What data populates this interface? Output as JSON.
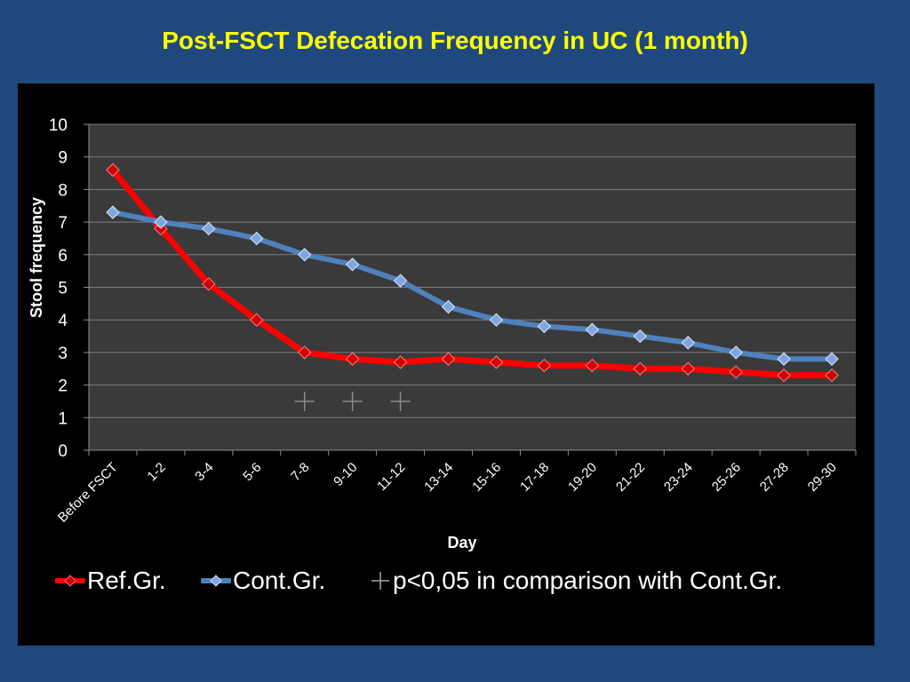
{
  "title": "Post-FSCT Defecation Frequency in UC (1 month)",
  "chart_data": {
    "type": "line",
    "title": "Post-FSCT Defecation Frequency in UC (1 month)",
    "xlabel": "Day",
    "ylabel": "Stool  frequency",
    "ylim": [
      0,
      10
    ],
    "yticks": [
      "0",
      "1",
      "2",
      "3",
      "4",
      "5",
      "6",
      "7",
      "8",
      "9",
      "10"
    ],
    "categories": [
      "Before FSCT",
      "1-2",
      "3-4",
      "5-6",
      "7-8",
      "9-10",
      "11-12",
      "13-14",
      "15-16",
      "17-18",
      "19-20",
      "21-22",
      "23-24",
      "25-26",
      "27-28",
      "29-30"
    ],
    "series": [
      {
        "name": "Ref.Gr.",
        "color": "#ff0000",
        "marker_color": "#cc0000",
        "values": [
          8.6,
          6.8,
          5.1,
          4.0,
          3.0,
          2.8,
          2.7,
          2.8,
          2.7,
          2.6,
          2.6,
          2.5,
          2.5,
          2.4,
          2.3,
          2.3
        ]
      },
      {
        "name": "Cont.Gr.",
        "color": "#4f81bd",
        "marker_color": "#7ea6e0",
        "values": [
          7.3,
          7.0,
          6.8,
          6.5,
          6.0,
          5.7,
          5.2,
          4.4,
          4.0,
          3.8,
          3.7,
          3.5,
          3.3,
          3.0,
          2.8,
          2.8
        ]
      }
    ],
    "significance_marks": {
      "symbol": "+",
      "categories": [
        "7-8",
        "9-10",
        "11-12"
      ],
      "y": 1.5
    },
    "significance_label": "p<0,05 in comparison with Cont.Gr.",
    "grid": true,
    "legend_position": "bottom",
    "colors": {
      "background": "#1f497d",
      "panel": "#000000",
      "plot_area": "#3a3a3a",
      "grid": "#7f7f7f",
      "title": "#ffff00"
    }
  }
}
